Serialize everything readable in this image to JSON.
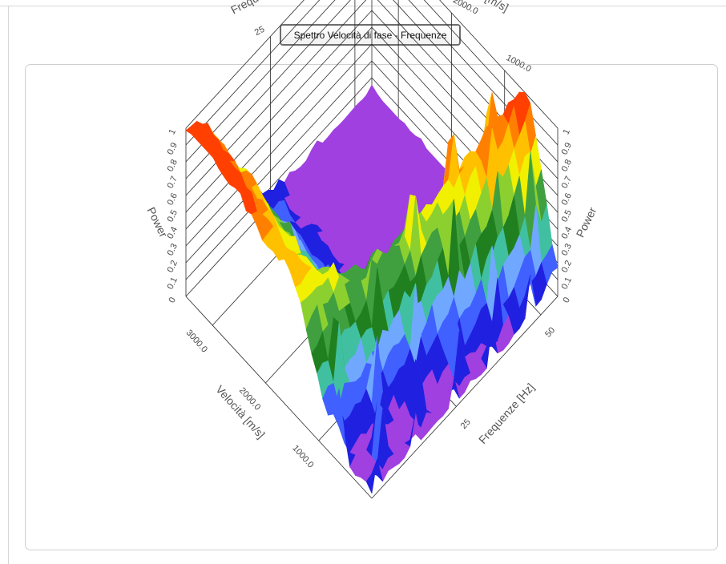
{
  "window": {
    "title_button": "Spettro Velocità di fase - Frequenze"
  },
  "chart_data": {
    "type": "surface3d",
    "title": "Spettro Velocità di fase - Frequenze",
    "axes": {
      "frequency": {
        "label": "Frequenze [Hz]",
        "ticks": [
          "25",
          "50"
        ],
        "range": [
          0,
          55
        ]
      },
      "velocity": {
        "label": "Velocità [m/s]",
        "ticks": [
          "1000.0",
          "2000.0",
          "3000.0"
        ],
        "range": [
          0,
          3500
        ]
      },
      "power": {
        "label": "Power",
        "ticks": [
          "0",
          "0.1",
          "0.2",
          "0.3",
          "0.4",
          "0.5",
          "0.6",
          "0.7",
          "0.8",
          "0.9",
          "1"
        ],
        "range": [
          0,
          1
        ]
      }
    },
    "colormap": [
      "#a040e0",
      "#2020e0",
      "#4060ff",
      "#70a8ff",
      "#40c0a0",
      "#208020",
      "#40a040",
      "#8cd030",
      "#f0f000",
      "#ffc000",
      "#ff8000",
      "#ff4000"
    ],
    "surface_note_values": {
      "ridge_low_velocity_peak_power": 1.0,
      "ridge_low_velocity_peak_frequency": 44,
      "floor_power": 0.05
    }
  }
}
